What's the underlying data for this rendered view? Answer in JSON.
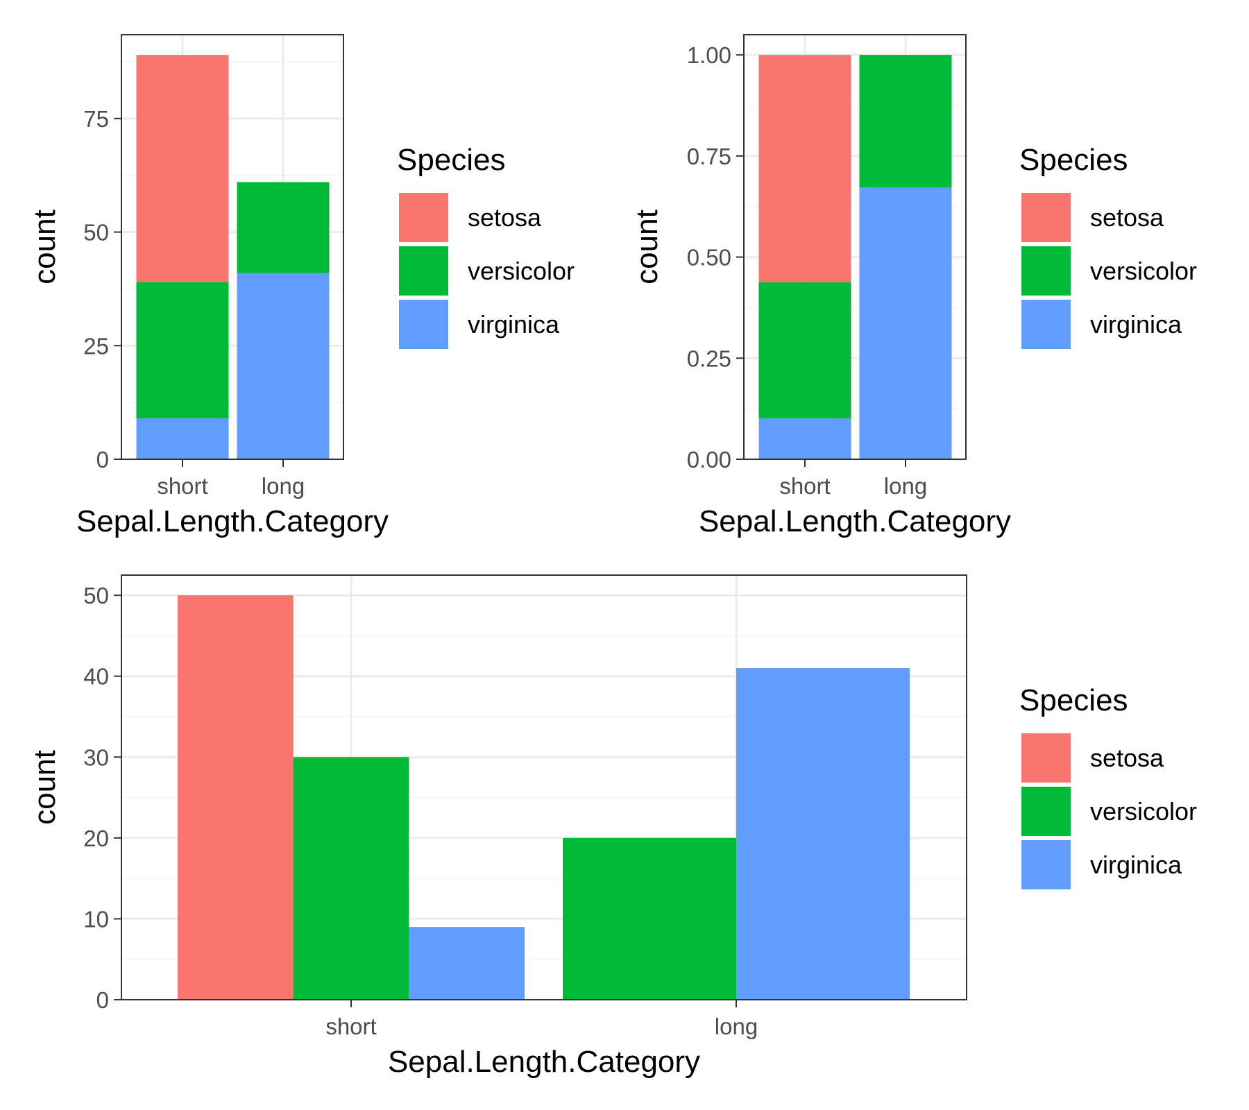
{
  "colors": {
    "setosa": "#F8766D",
    "versicolor": "#00BA38",
    "virginica": "#619CFF",
    "panel_border": "#333333",
    "grid_major": "#EBEBEB",
    "grid_minor": "#F5F5F5",
    "tick_text": "#4D4D4D"
  },
  "chart_data": [
    {
      "type": "bar",
      "position": "stack",
      "categories": [
        "short",
        "long"
      ],
      "series": [
        {
          "name": "virginica",
          "values": [
            9,
            41
          ]
        },
        {
          "name": "versicolor",
          "values": [
            30,
            20
          ]
        },
        {
          "name": "setosa",
          "values": [
            50,
            0
          ]
        }
      ],
      "xlabel": "Sepal.Length.Category",
      "ylabel": "count",
      "ylim": [
        0,
        93.45
      ],
      "yticks": [
        0,
        25,
        50,
        75
      ],
      "ytick_labels": [
        "0",
        "25",
        "50",
        "75"
      ],
      "legend": {
        "title": "Species",
        "entries": [
          "setosa",
          "versicolor",
          "virginica"
        ],
        "placement": "right"
      },
      "grid": true
    },
    {
      "type": "bar",
      "position": "fill",
      "categories": [
        "short",
        "long"
      ],
      "series": [
        {
          "name": "virginica",
          "values": [
            0.101,
            0.672
          ]
        },
        {
          "name": "versicolor",
          "values": [
            0.337,
            0.328
          ]
        },
        {
          "name": "setosa",
          "values": [
            0.562,
            0.0
          ]
        }
      ],
      "xlabel": "Sepal.Length.Category",
      "ylabel": "count",
      "ylim": [
        0,
        1.05
      ],
      "yticks": [
        0,
        0.25,
        0.5,
        0.75,
        1.0
      ],
      "ytick_labels": [
        "0.00",
        "0.25",
        "0.50",
        "0.75",
        "1.00"
      ],
      "legend": {
        "title": "Species",
        "entries": [
          "setosa",
          "versicolor",
          "virginica"
        ],
        "placement": "right"
      },
      "grid": true
    },
    {
      "type": "bar",
      "position": "dodge",
      "categories": [
        "short",
        "long"
      ],
      "series": [
        {
          "name": "setosa",
          "values": [
            50,
            null
          ]
        },
        {
          "name": "versicolor",
          "values": [
            30,
            20
          ]
        },
        {
          "name": "virginica",
          "values": [
            9,
            41
          ]
        }
      ],
      "xlabel": "Sepal.Length.Category",
      "ylabel": "count",
      "ylim": [
        0,
        52.5
      ],
      "yticks": [
        0,
        10,
        20,
        30,
        40,
        50
      ],
      "ytick_labels": [
        "0",
        "10",
        "20",
        "30",
        "40",
        "50"
      ],
      "legend": {
        "title": "Species",
        "entries": [
          "setosa",
          "versicolor",
          "virginica"
        ],
        "placement": "right"
      },
      "grid": true
    }
  ]
}
